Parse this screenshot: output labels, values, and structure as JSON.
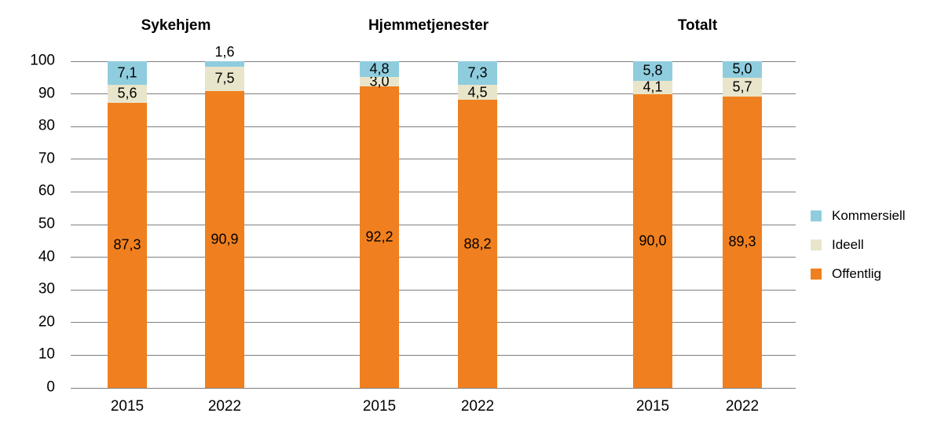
{
  "chart_data": {
    "type": "bar",
    "stacked": true,
    "title": "",
    "xlabel": "",
    "ylabel": "",
    "ylim": [
      0,
      100
    ],
    "yticks": [
      0,
      10,
      20,
      30,
      40,
      50,
      60,
      70,
      80,
      90,
      100
    ],
    "grid": true,
    "gridline_color": "#7f7f7f",
    "background_color": "#ffffff",
    "text_color": "#000000",
    "series": [
      {
        "name": "Offentlig",
        "color": "#F0801F"
      },
      {
        "name": "Ideell",
        "color": "#E9E5CA"
      },
      {
        "name": "Kommersiell",
        "color": "#8FCDDE"
      }
    ],
    "legend": {
      "position": "right",
      "order": [
        "Kommersiell",
        "Ideell",
        "Offentlig"
      ]
    },
    "groups": [
      {
        "title": "Sykehjem",
        "bars": [
          {
            "x": "2015",
            "values": {
              "Offentlig": 87.3,
              "Ideell": 5.6,
              "Kommersiell": 7.1
            },
            "labels": {
              "Offentlig": "87,3",
              "Ideell": "5,6",
              "Kommersiell": "7,1"
            }
          },
          {
            "x": "2022",
            "values": {
              "Offentlig": 90.9,
              "Ideell": 7.5,
              "Kommersiell": 1.6
            },
            "labels": {
              "Offentlig": "90,9",
              "Ideell": "7,5",
              "Kommersiell": "1,6"
            }
          }
        ]
      },
      {
        "title": "Hjemmetjenester",
        "bars": [
          {
            "x": "2015",
            "values": {
              "Offentlig": 92.2,
              "Ideell": 3.0,
              "Kommersiell": 4.8
            },
            "labels": {
              "Offentlig": "92,2",
              "Ideell": "3,0",
              "Kommersiell": "4,8"
            }
          },
          {
            "x": "2022",
            "values": {
              "Offentlig": 88.2,
              "Ideell": 4.5,
              "Kommersiell": 7.3
            },
            "labels": {
              "Offentlig": "88,2",
              "Ideell": "4,5",
              "Kommersiell": "7,3"
            }
          }
        ]
      },
      {
        "title": "Totalt",
        "bars": [
          {
            "x": "2015",
            "values": {
              "Offentlig": 90.0,
              "Ideell": 4.1,
              "Kommersiell": 5.8
            },
            "labels": {
              "Offentlig": "90,0",
              "Ideell": "4,1",
              "Kommersiell": "5,8"
            }
          },
          {
            "x": "2022",
            "values": {
              "Offentlig": 89.3,
              "Ideell": 5.7,
              "Kommersiell": 5.0
            },
            "labels": {
              "Offentlig": "89,3",
              "Ideell": "5,7",
              "Kommersiell": "5,0"
            }
          }
        ]
      }
    ]
  }
}
